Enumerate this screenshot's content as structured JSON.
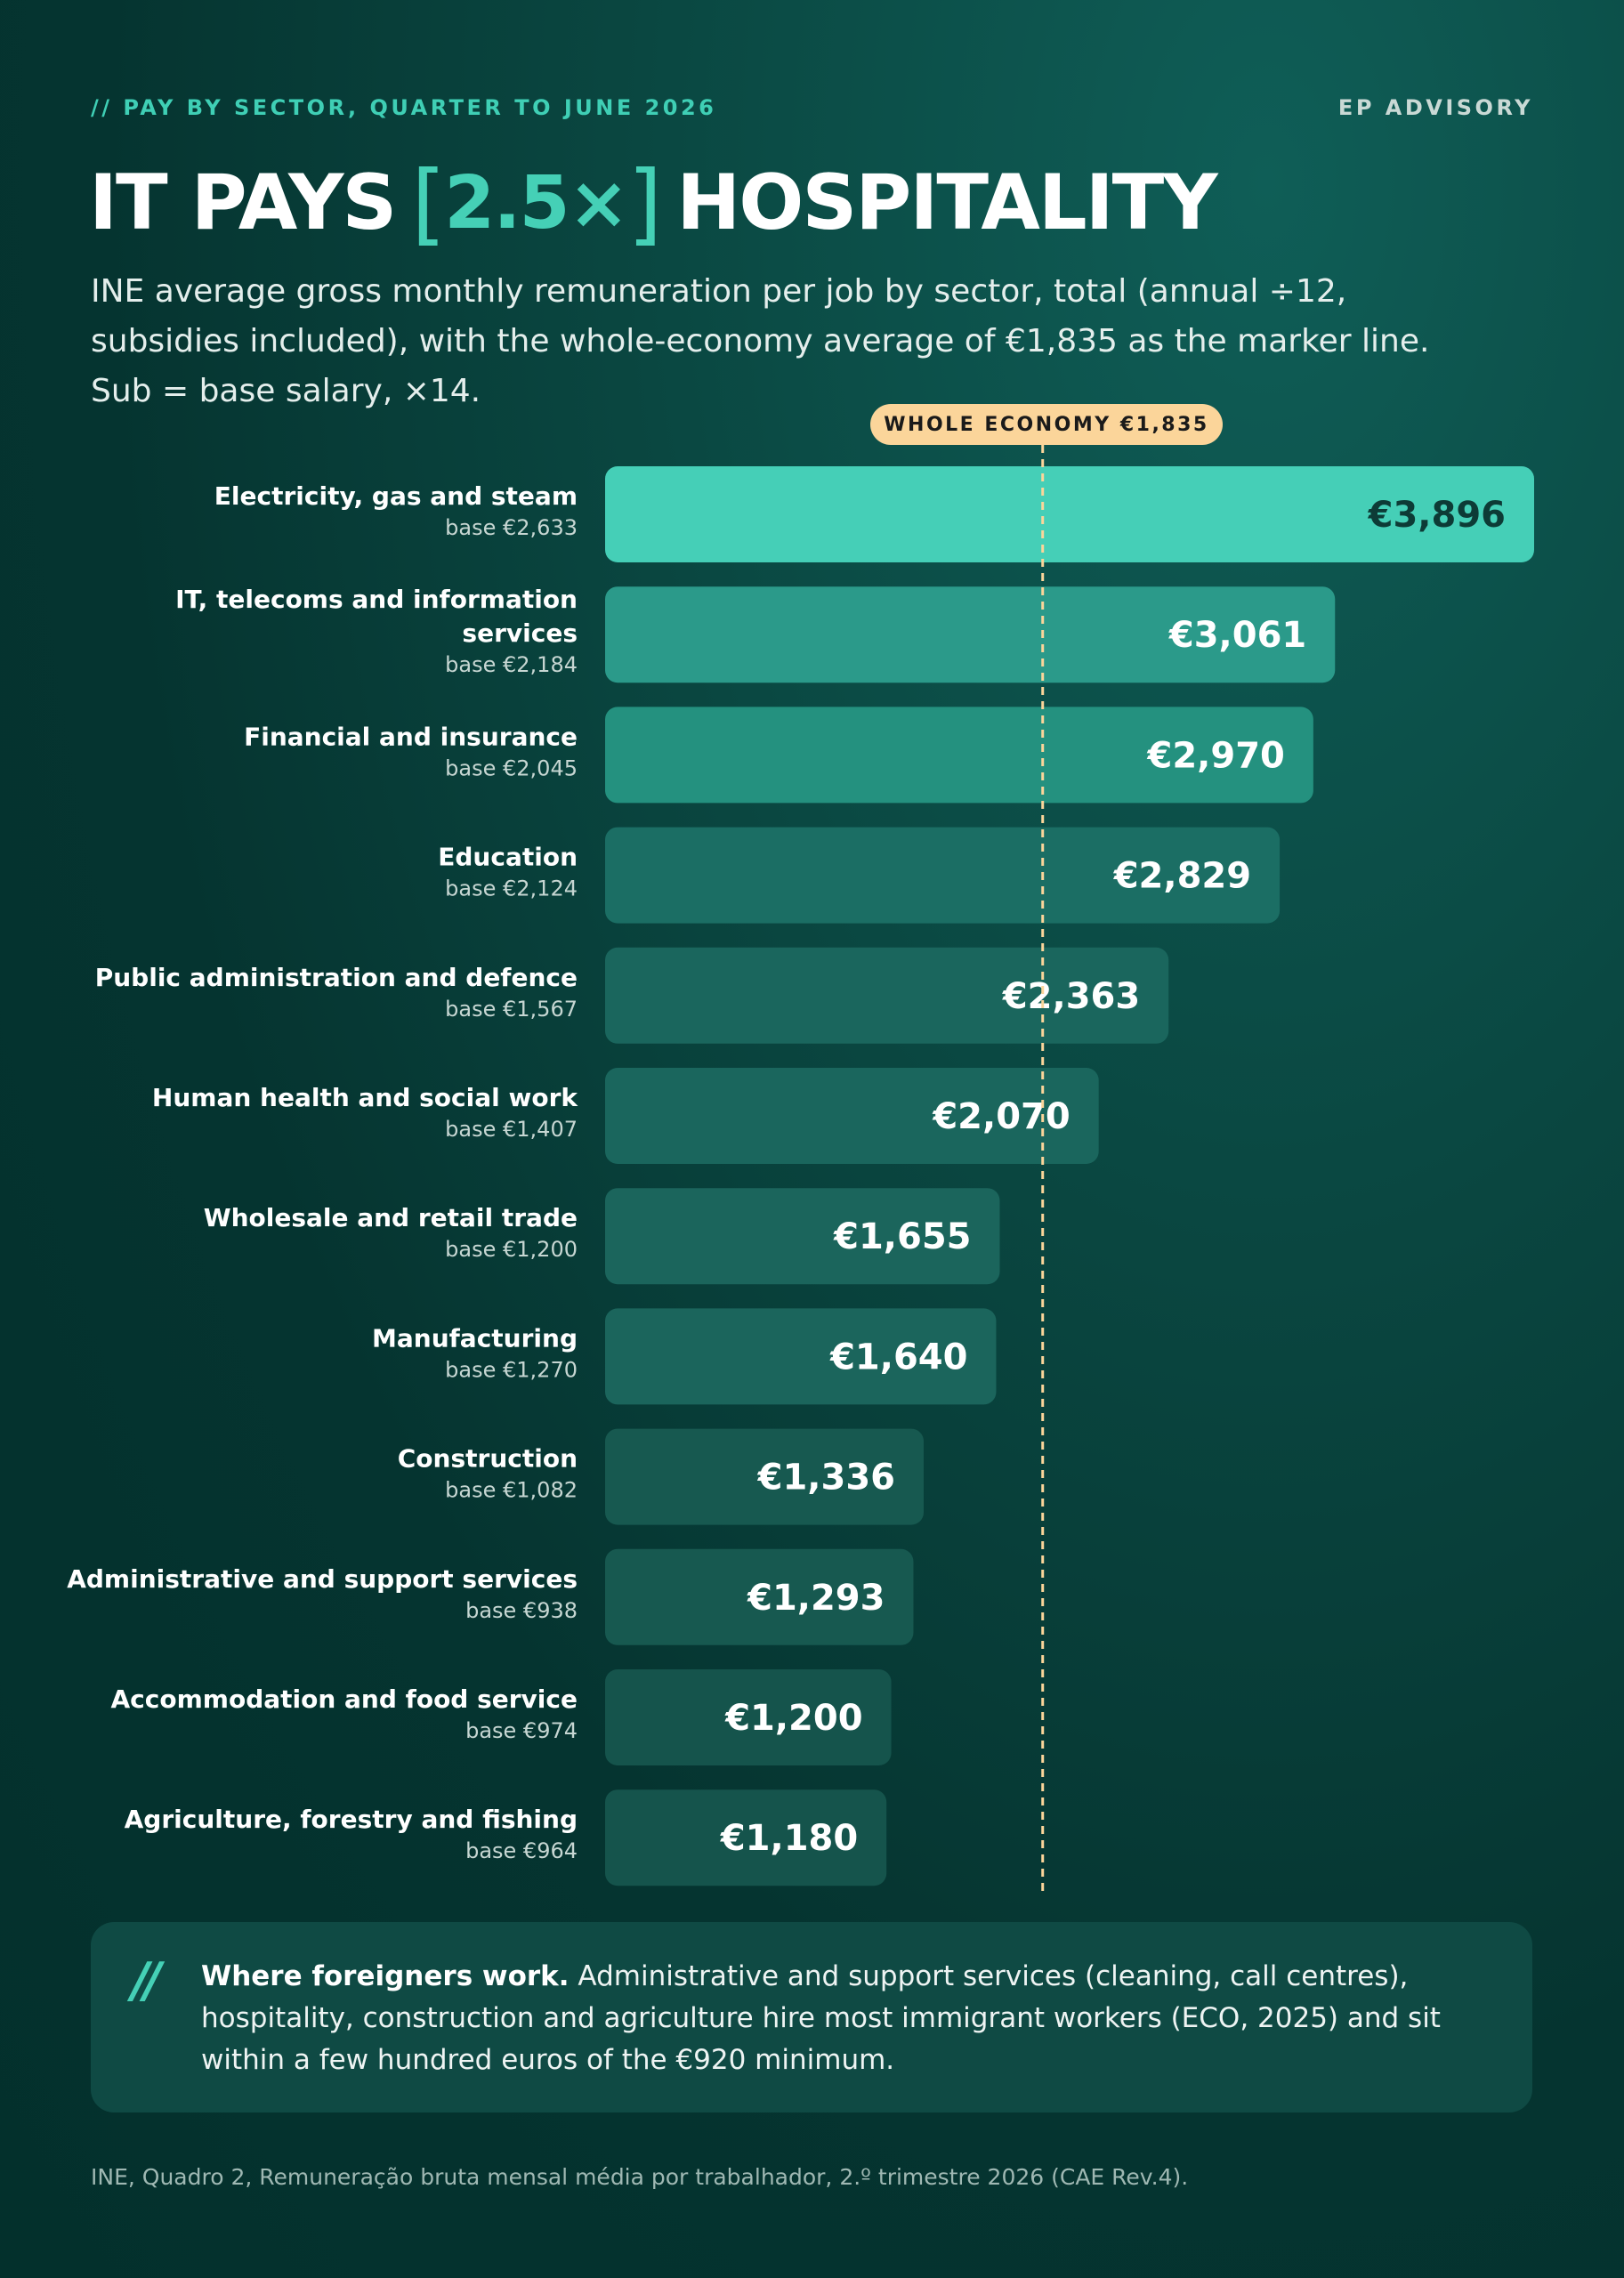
{
  "header": {
    "kicker": "// PAY BY SECTOR, QUARTER TO JUNE 2026",
    "brand": "EP ADVISORY"
  },
  "headline": {
    "before": "IT PAYS",
    "bracket_open": "[",
    "highlight": "2.5×",
    "bracket_close": "]",
    "after": "HOSPITALITY"
  },
  "subtitle": {
    "line1": "INE average gross monthly remuneration per job by sector, total (annual ÷12,",
    "line2": "subsidies included), with the whole-economy average of €1,835 as the marker line.",
    "line3": "Sub = base salary, ×14."
  },
  "chart_data": {
    "type": "bar",
    "orientation": "horizontal",
    "categories": [
      "Electricity, gas and steam",
      "IT, telecoms and information services",
      "Financial and insurance",
      "Education",
      "Public administration and defence",
      "Human health and social work",
      "Wholesale and retail trade",
      "Manufacturing",
      "Construction",
      "Administrative and support services",
      "Accommodation and food service",
      "Agriculture, forestry and fishing"
    ],
    "label_lines": [
      [
        "Electricity, gas and steam"
      ],
      [
        "IT, telecoms and information",
        "services"
      ],
      [
        "Financial and insurance"
      ],
      [
        "Education"
      ],
      [
        "Public administration and defence"
      ],
      [
        "Human health and social work"
      ],
      [
        "Wholesale and retail trade"
      ],
      [
        "Manufacturing"
      ],
      [
        "Construction"
      ],
      [
        "Administrative and support services"
      ],
      [
        "Accommodation and food service"
      ],
      [
        "Agriculture, forestry and fishing"
      ]
    ],
    "base_labels": [
      "base €2,633",
      "base €2,184",
      "base €2,045",
      "base €2,124",
      "base €1,567",
      "base €1,407",
      "base €1,200",
      "base €1,270",
      "base €1,082",
      "base €938",
      "base €974",
      "base €964"
    ],
    "values": [
      3896,
      3061,
      2970,
      2829,
      2363,
      2070,
      1655,
      1640,
      1336,
      1293,
      1200,
      1180
    ],
    "value_labels": [
      "€3,896",
      "€3,061",
      "€2,970",
      "€2,829",
      "€2,363",
      "€2,070",
      "€1,655",
      "€1,640",
      "€1,336",
      "€1,293",
      "€1,200",
      "€1,180"
    ],
    "base_values": [
      2633,
      2184,
      2045,
      2124,
      1567,
      1407,
      1200,
      1270,
      1082,
      938,
      974,
      964
    ],
    "reference": {
      "value": 1835,
      "label": "WHOLE ECONOMY €1,835"
    },
    "unit": "€ per month"
  },
  "colors": {
    "bar_highlight": "#45cfb7",
    "bar_shades": [
      "#45cfb7",
      "#2b9a8a",
      "#24917f",
      "#1b6e64",
      "#1a665d",
      "#1a665d",
      "#1b655c",
      "#1b655c",
      "#175950",
      "#175950",
      "#15544c",
      "#15544c"
    ],
    "value_dark": "#0d3b36",
    "value_light": "#ffffff",
    "reference_line": "#fbd59a"
  },
  "note": {
    "mark": "//",
    "lead": "Where foreigners work.",
    "body": " Administrative and support services (cleaning, call centres), hospitality, construction and agriculture hire most immigrant workers (ECO, 2025) and sit within a few hundred euros of the €920 minimum."
  },
  "source": "INE, Quadro 2, Remuneração bruta mensal média por trabalhador, 2.º trimestre 2026 (CAE Rev.4)."
}
